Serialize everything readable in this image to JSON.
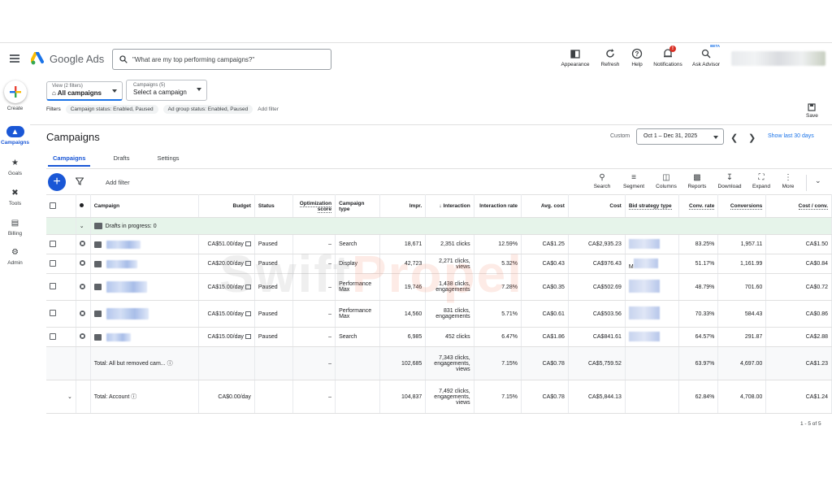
{
  "app": {
    "name": "Google Ads"
  },
  "search": {
    "placeholder": "\"What are my top performing campaigns?\""
  },
  "header_tools": [
    {
      "label": "Appearance",
      "icon": "appearance-icon"
    },
    {
      "label": "Refresh",
      "icon": "refresh-icon"
    },
    {
      "label": "Help",
      "icon": "help-icon"
    },
    {
      "label": "Notifications",
      "icon": "bell-icon",
      "badge": "!"
    },
    {
      "label": "Ask Advisor",
      "icon": "advisor-icon",
      "tag": "BETA"
    }
  ],
  "rail": [
    {
      "label": "Create",
      "icon": "plus-icon"
    },
    {
      "label": "Campaigns",
      "icon": "megaphone-icon",
      "active": true
    },
    {
      "label": "Goals",
      "icon": "trophy-icon"
    },
    {
      "label": "Tools",
      "icon": "tools-icon"
    },
    {
      "label": "Billing",
      "icon": "card-icon"
    },
    {
      "label": "Admin",
      "icon": "gear-icon"
    }
  ],
  "view_selector": {
    "caption": "View (2 filters)",
    "value": "All campaigns"
  },
  "campaign_selector": {
    "caption": "Campaigns (5)",
    "value": "Select a campaign"
  },
  "filters": {
    "label": "Filters",
    "chips": [
      "Campaign status: Enabled, Paused",
      "Ad group status: Enabled, Paused"
    ],
    "add": "Add filter"
  },
  "save": {
    "label": "Save"
  },
  "page": {
    "title": "Campaigns",
    "date_mode": "Custom",
    "date_range": "Oct 1 – Dec 31, 2025",
    "show_last": "Show last 30 days",
    "tabs": [
      "Campaigns",
      "Drafts",
      "Settings"
    ]
  },
  "toolbar": {
    "add_filter": "Add filter",
    "tools": [
      "Search",
      "Segment",
      "Columns",
      "Reports",
      "Download",
      "Expand",
      "More"
    ]
  },
  "table": {
    "headers": [
      "Campaign",
      "Budget",
      "Status",
      "Optimization score",
      "Campaign type",
      "Impr.",
      "Interaction",
      "Interaction rate",
      "Avg. cost",
      "Cost",
      "Bid strategy type",
      "Conv. rate",
      "Conversions",
      "Cost / conv."
    ],
    "drafts_label": "Drafts in progress: 0",
    "rows": [
      {
        "budget": "CA$51.00/day",
        "status": "Paused",
        "opt": "–",
        "type": "Search",
        "impr": "18,671",
        "inter": "2,351 clicks",
        "rate": "12.59%",
        "avg": "CA$1.25",
        "cost": "CA$2,935.23",
        "conv_rate": "83.25%",
        "conv": "1,957.11",
        "cpc": "CA$1.50"
      },
      {
        "budget": "CA$20.00/day",
        "status": "Paused",
        "opt": "–",
        "type": "Display",
        "impr": "42,723",
        "inter": "2,271 clicks, views",
        "rate": "5.32%",
        "avg": "CA$0.43",
        "cost": "CA$976.43",
        "bid": "M",
        "conv_rate": "51.17%",
        "conv": "1,161.99",
        "cpc": "CA$0.84"
      },
      {
        "budget": "CA$15.00/day",
        "status": "Paused",
        "opt": "–",
        "type": "Performance Max",
        "impr": "19,746",
        "inter": "1,438 clicks, engagements",
        "rate": "7.28%",
        "avg": "CA$0.35",
        "cost": "CA$502.69",
        "conv_rate": "48.79%",
        "conv": "701.60",
        "cpc": "CA$0.72"
      },
      {
        "budget": "CA$15.00/day",
        "status": "Paused",
        "opt": "–",
        "type": "Performance Max",
        "impr": "14,560",
        "inter": "831 clicks, engagements",
        "rate": "5.71%",
        "avg": "CA$0.61",
        "cost": "CA$503.56",
        "conv_rate": "70.33%",
        "conv": "584.43",
        "cpc": "CA$0.86"
      },
      {
        "budget": "CA$15.00/day",
        "status": "Paused",
        "opt": "–",
        "type": "Search",
        "impr": "6,985",
        "inter": "452 clicks",
        "rate": "6.47%",
        "avg": "CA$1.86",
        "cost": "CA$841.61",
        "conv_rate": "64.57%",
        "conv": "291.87",
        "cpc": "CA$2.88"
      }
    ],
    "total_removed": {
      "label": "Total: All but removed cam...",
      "opt": "–",
      "impr": "102,685",
      "inter": "7,343 clicks, engagements, views",
      "rate": "7.15%",
      "avg": "CA$0.78",
      "cost": "CA$5,759.52",
      "conv_rate": "63.97%",
      "conv": "4,697.00",
      "cpc": "CA$1.23"
    },
    "total_account": {
      "label": "Total: Account",
      "budget": "CA$0.00/day",
      "opt": "–",
      "impr": "104,837",
      "inter": "7,492 clicks, engagements, views",
      "rate": "7.15%",
      "avg": "CA$0.78",
      "cost": "CA$5,844.13",
      "conv_rate": "62.84%",
      "conv": "4,708.00",
      "cpc": "CA$1.24"
    },
    "pager": "1 - 5 of 5"
  },
  "watermark": {
    "part1": "Swift",
    "part2": "Propel"
  }
}
